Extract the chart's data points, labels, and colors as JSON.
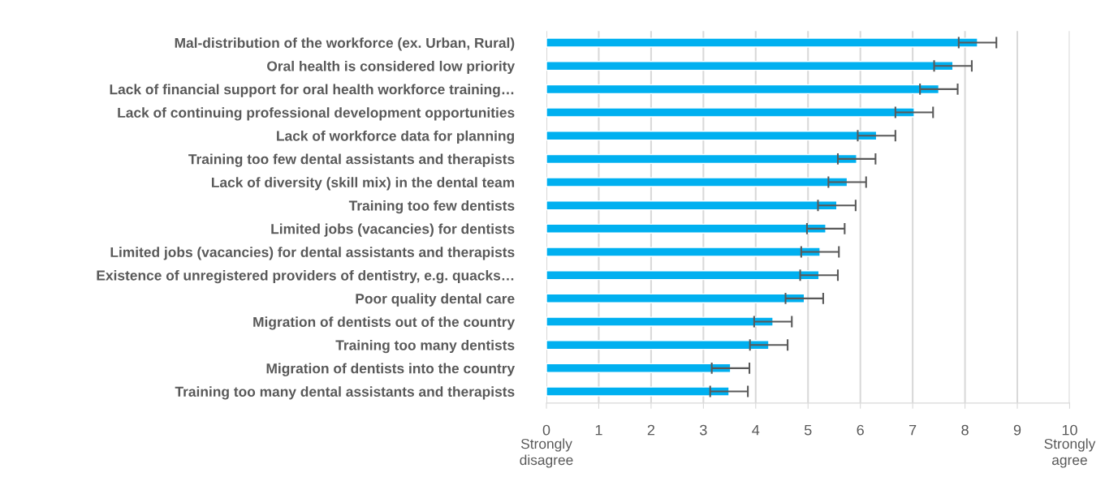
{
  "chart_data": {
    "type": "bar",
    "orientation": "horizontal",
    "categories": [
      "Mal-distribution of the workforce (ex. Urban, Rural)",
      "Oral health is considered low priority",
      "Lack of financial support for oral health workforce training…",
      "Lack of continuing professional development opportunities",
      "Lack of workforce data for planning",
      "Training too few dental assistants and therapists",
      "Lack of diversity (skill mix) in the dental team",
      "Training too few dentists",
      "Limited jobs (vacancies) for dentists",
      "Limited jobs (vacancies) for dental assistants and therapists",
      "Existence of unregistered providers of dentistry, e.g. quacks…",
      "Poor quality dental care",
      "Migration of dentists out of the country",
      "Training too many dentists",
      "Migration of dentists into the country",
      "Training too many dental assistants and therapists"
    ],
    "values": [
      8.24,
      7.77,
      7.5,
      7.03,
      6.31,
      5.93,
      5.75,
      5.55,
      5.34,
      5.23,
      5.21,
      4.93,
      4.33,
      4.25,
      3.52,
      3.49
    ],
    "errors": [
      0.36,
      0.36,
      0.36,
      0.36,
      0.36,
      0.36,
      0.36,
      0.36,
      0.36,
      0.36,
      0.36,
      0.36,
      0.36,
      0.36,
      0.36,
      0.36
    ],
    "color": "#00b0f0",
    "xlim": [
      0,
      10
    ],
    "xticks": [
      0,
      1,
      2,
      3,
      4,
      5,
      6,
      7,
      8,
      9,
      10
    ],
    "grid": "x",
    "annotations": [
      "Strongly\ndisagree",
      "Strongly\nagree"
    ]
  }
}
